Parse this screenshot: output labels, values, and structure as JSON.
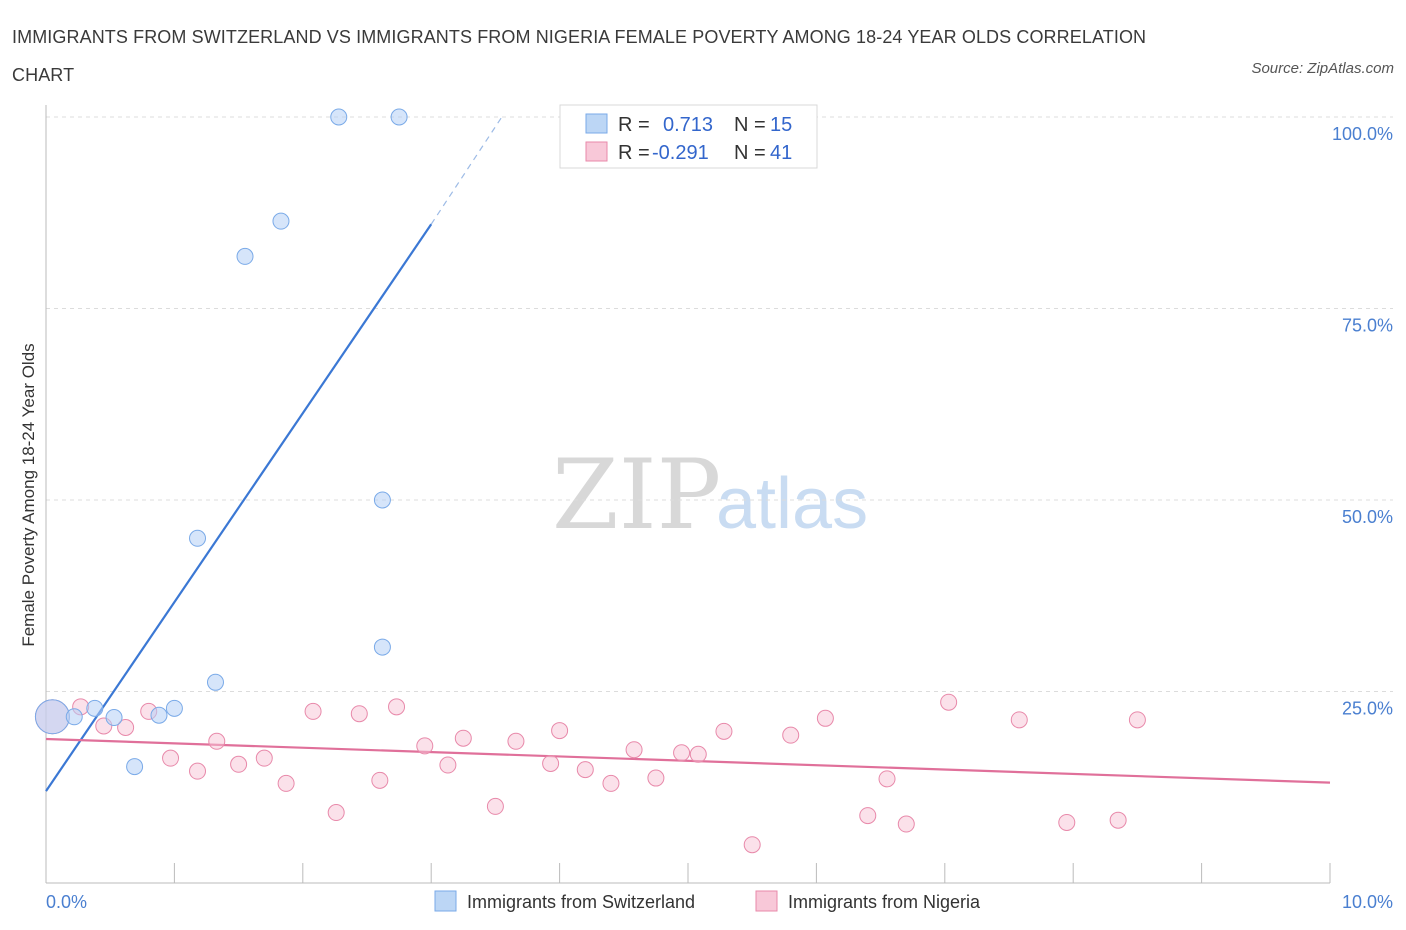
{
  "title": "IMMIGRANTS FROM SWITZERLAND VS IMMIGRANTS FROM NIGERIA FEMALE POVERTY AMONG 18-24 YEAR OLDS CORRELATION CHART",
  "source": "Source: ZipAtlas.com",
  "watermark": {
    "zip": "ZIP",
    "atlas": "atlas"
  },
  "chart_data": {
    "type": "scatter",
    "title": "IMMIGRANTS FROM SWITZERLAND VS IMMIGRANTS FROM NIGERIA FEMALE POVERTY AMONG 18-24 YEAR OLDS CORRELATION CHART",
    "xlabel": "",
    "ylabel": "Female Poverty Among 18-24 Year Olds",
    "xlim": [
      0,
      10
    ],
    "ylim": [
      0,
      100
    ],
    "x_tick_labels": {
      "min": "0.0%",
      "max": "10.0%"
    },
    "y_ticks": [
      {
        "value": 100,
        "label": "100.0%"
      },
      {
        "value": 75,
        "label": "75.0%"
      },
      {
        "value": 50,
        "label": "50.0%"
      },
      {
        "value": 25,
        "label": "25.0%"
      }
    ],
    "grid": true,
    "legend": [
      {
        "name": "Immigrants from Switzerland",
        "r_label": "R =",
        "r": "0.713",
        "n_label": "N =",
        "n": "15",
        "color": "#7aaae8",
        "fill": "#bcd6f5"
      },
      {
        "name": "Immigrants from Nigeria",
        "r_label": "R =",
        "r": "-0.291",
        "n_label": "N =",
        "n": "41",
        "color": "#e889aa",
        "fill": "#f8c8d8"
      }
    ],
    "series": [
      {
        "name": "Immigrants from Switzerland",
        "color": "#5b8fd9",
        "points": [
          {
            "x": 0.05,
            "y": 21.7,
            "big": true
          },
          {
            "x": 0.22,
            "y": 21.7
          },
          {
            "x": 0.38,
            "y": 22.8
          },
          {
            "x": 0.53,
            "y": 21.6
          },
          {
            "x": 0.69,
            "y": 15.2
          },
          {
            "x": 0.88,
            "y": 21.9
          },
          {
            "x": 1.0,
            "y": 22.8
          },
          {
            "x": 1.18,
            "y": 45.0
          },
          {
            "x": 1.32,
            "y": 26.2
          },
          {
            "x": 1.55,
            "y": 81.8
          },
          {
            "x": 1.83,
            "y": 86.4
          },
          {
            "x": 2.28,
            "y": 100.0
          },
          {
            "x": 2.62,
            "y": 30.8
          },
          {
            "x": 2.62,
            "y": 50.0
          },
          {
            "x": 2.75,
            "y": 100.0
          }
        ],
        "trend": {
          "x0": 0.0,
          "y0": 12.0,
          "x1": 3.0,
          "y1": 86.0,
          "dash_x1": 3.55,
          "dash_y1": 100.0
        }
      },
      {
        "name": "Immigrants from Nigeria",
        "color": "#e0709a",
        "points": [
          {
            "x": 0.05,
            "y": 21.7,
            "big": true
          },
          {
            "x": 0.27,
            "y": 23.0
          },
          {
            "x": 0.45,
            "y": 20.5
          },
          {
            "x": 0.62,
            "y": 20.3
          },
          {
            "x": 0.8,
            "y": 22.4
          },
          {
            "x": 0.97,
            "y": 16.3
          },
          {
            "x": 1.18,
            "y": 14.6
          },
          {
            "x": 1.33,
            "y": 18.5
          },
          {
            "x": 1.5,
            "y": 15.5
          },
          {
            "x": 1.7,
            "y": 16.3
          },
          {
            "x": 1.87,
            "y": 13.0
          },
          {
            "x": 2.08,
            "y": 22.4
          },
          {
            "x": 2.26,
            "y": 9.2
          },
          {
            "x": 2.44,
            "y": 22.1
          },
          {
            "x": 2.6,
            "y": 13.4
          },
          {
            "x": 2.73,
            "y": 23.0
          },
          {
            "x": 2.95,
            "y": 17.9
          },
          {
            "x": 3.13,
            "y": 15.4
          },
          {
            "x": 3.25,
            "y": 18.9
          },
          {
            "x": 3.5,
            "y": 10.0
          },
          {
            "x": 3.66,
            "y": 18.5
          },
          {
            "x": 3.93,
            "y": 15.6
          },
          {
            "x": 4.0,
            "y": 19.9
          },
          {
            "x": 4.2,
            "y": 14.8
          },
          {
            "x": 4.4,
            "y": 13.0
          },
          {
            "x": 4.58,
            "y": 17.4
          },
          {
            "x": 4.75,
            "y": 13.7
          },
          {
            "x": 4.95,
            "y": 17.0
          },
          {
            "x": 5.08,
            "y": 16.8
          },
          {
            "x": 5.28,
            "y": 19.8
          },
          {
            "x": 5.5,
            "y": 5.0
          },
          {
            "x": 5.8,
            "y": 19.3
          },
          {
            "x": 6.07,
            "y": 21.5
          },
          {
            "x": 6.4,
            "y": 8.8
          },
          {
            "x": 6.55,
            "y": 13.6
          },
          {
            "x": 6.7,
            "y": 7.7
          },
          {
            "x": 7.03,
            "y": 23.6
          },
          {
            "x": 7.58,
            "y": 21.3
          },
          {
            "x": 7.95,
            "y": 7.9
          },
          {
            "x": 8.35,
            "y": 8.2
          },
          {
            "x": 8.5,
            "y": 21.3
          }
        ],
        "trend": {
          "x0": 0.0,
          "y0": 18.8,
          "x1": 10.0,
          "y1": 13.1
        }
      }
    ]
  }
}
